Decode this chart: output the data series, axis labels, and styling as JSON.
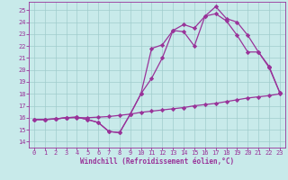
{
  "xlabel": "Windchill (Refroidissement éolien,°C)",
  "bg_color": "#c8eaea",
  "grid_color": "#a0cccc",
  "line_color": "#993399",
  "xlim": [
    -0.5,
    23.5
  ],
  "ylim": [
    13.5,
    25.7
  ],
  "yticks": [
    14,
    15,
    16,
    17,
    18,
    19,
    20,
    21,
    22,
    23,
    24,
    25
  ],
  "xticks": [
    0,
    1,
    2,
    3,
    4,
    5,
    6,
    7,
    8,
    9,
    10,
    11,
    12,
    13,
    14,
    15,
    16,
    17,
    18,
    19,
    20,
    21,
    22,
    23
  ],
  "line1_x": [
    0,
    1,
    2,
    3,
    4,
    5,
    6,
    7,
    8,
    9,
    10,
    11,
    12,
    13,
    14,
    15,
    16,
    17,
    18,
    19,
    20,
    21,
    22,
    23
  ],
  "line1_y": [
    15.85,
    15.85,
    15.9,
    16.0,
    16.0,
    16.0,
    16.05,
    16.1,
    16.2,
    16.3,
    16.45,
    16.55,
    16.65,
    16.75,
    16.85,
    17.0,
    17.1,
    17.2,
    17.35,
    17.5,
    17.65,
    17.75,
    17.85,
    18.0
  ],
  "line2_x": [
    0,
    1,
    2,
    3,
    4,
    5,
    6,
    7,
    8,
    9,
    10,
    11,
    12,
    13,
    14,
    15,
    16,
    17,
    18,
    19,
    20,
    21,
    22,
    23
  ],
  "line2_y": [
    15.85,
    15.85,
    15.9,
    16.0,
    16.05,
    15.85,
    15.6,
    14.85,
    14.75,
    16.3,
    18.0,
    21.8,
    22.1,
    23.3,
    23.8,
    23.5,
    24.5,
    25.3,
    24.3,
    24.0,
    22.9,
    21.5,
    20.2,
    18.1
  ],
  "line3_x": [
    0,
    1,
    2,
    3,
    4,
    5,
    6,
    7,
    8,
    9,
    10,
    11,
    12,
    13,
    14,
    15,
    16,
    17,
    18,
    19,
    20,
    21,
    22,
    23
  ],
  "line3_y": [
    15.85,
    15.85,
    15.9,
    16.0,
    16.05,
    15.85,
    15.6,
    14.85,
    14.75,
    16.3,
    18.0,
    19.3,
    21.0,
    23.3,
    23.2,
    22.0,
    24.5,
    24.7,
    24.1,
    22.9,
    21.5,
    21.5,
    20.3,
    18.1
  ],
  "marker": "D",
  "marker_size": 2.2,
  "linewidth": 0.9,
  "tick_fontsize": 5.0,
  "label_fontsize": 5.5
}
